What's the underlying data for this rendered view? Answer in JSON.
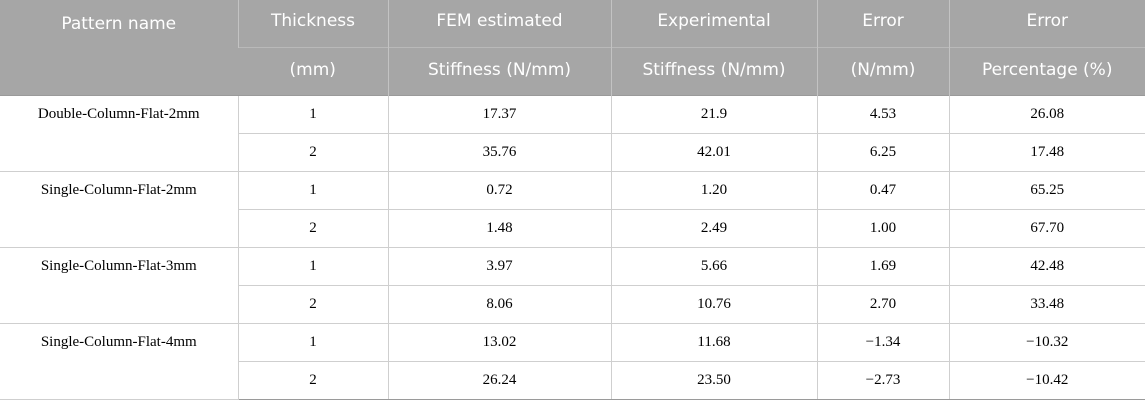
{
  "table": {
    "header_top": [
      "Pattern name",
      "Thickness",
      "FEM estimated",
      "Experimental",
      "Error",
      "Error"
    ],
    "header_sub": [
      "",
      "(mm)",
      "Stiffness (N/mm)",
      "Stiffness (N/mm)",
      "(N/mm)",
      "Percentage (%)"
    ],
    "groups": [
      {
        "pattern": "Double-Column-Flat-2mm",
        "rows": [
          {
            "thickness": "1",
            "fem": "17.37",
            "experimental": "21.9",
            "error": "4.53",
            "percentage": "26.08"
          },
          {
            "thickness": "2",
            "fem": "35.76",
            "experimental": "42.01",
            "error": "6.25",
            "percentage": "17.48"
          }
        ]
      },
      {
        "pattern": "Single-Column-Flat-2mm",
        "rows": [
          {
            "thickness": "1",
            "fem": "0.72",
            "experimental": "1.20",
            "error": "0.47",
            "percentage": "65.25"
          },
          {
            "thickness": "2",
            "fem": "1.48",
            "experimental": "2.49",
            "error": "1.00",
            "percentage": "67.70"
          }
        ]
      },
      {
        "pattern": "Single-Column-Flat-3mm",
        "rows": [
          {
            "thickness": "1",
            "fem": "3.97",
            "experimental": "5.66",
            "error": "1.69",
            "percentage": "42.48"
          },
          {
            "thickness": "2",
            "fem": "8.06",
            "experimental": "10.76",
            "error": "2.70",
            "percentage": "33.48"
          }
        ]
      },
      {
        "pattern": "Single-Column-Flat-4mm",
        "rows": [
          {
            "thickness": "1",
            "fem": "13.02",
            "experimental": "11.68",
            "error": "−1.34",
            "percentage": "−10.32"
          },
          {
            "thickness": "2",
            "fem": "26.24",
            "experimental": "23.50",
            "error": "−2.73",
            "percentage": "−10.42"
          }
        ]
      }
    ],
    "colors": {
      "header_bg": "#a6a6a6",
      "header_text": "#ffffff",
      "grid_line": "#cfcfcf"
    }
  }
}
